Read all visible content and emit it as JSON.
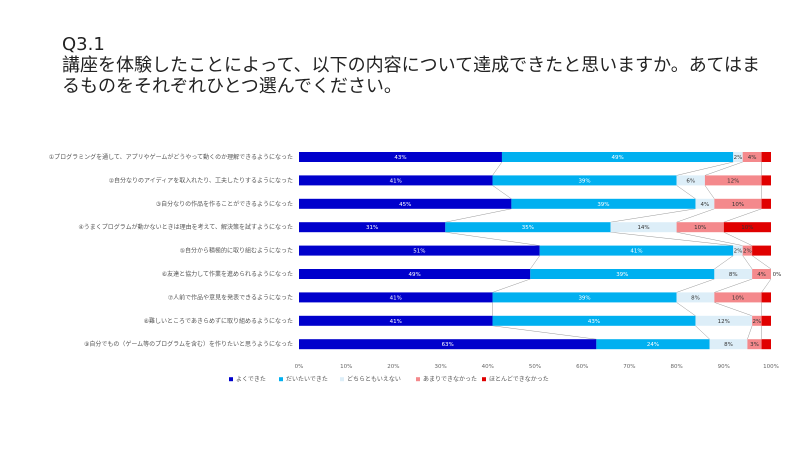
{
  "question": {
    "number": "Q3.1",
    "text": "講座を体験したことによって、以下の内容について達成できたと思いますか。あてはまるものをそれぞれひとつ選んでください。"
  },
  "chart_data": {
    "type": "bar",
    "orientation": "horizontal",
    "stacked": true,
    "percent": true,
    "categories": [
      "①プログラミングを通して、アプリやゲームがどうやって動くのか理解できるようになった",
      "②自分なりのアイディアを取入れたり、工夫したりするようになった",
      "③自分なりの作品を作ることができるようになった",
      "④うまくプログラムが動かないときは理由を考えて、解決策を試すようになった",
      "⑤自分から積極的に取り組むようになった",
      "⑥友達と協力して作業を進められるようになった",
      "⑦人前で作品や意見を発表できるようになった",
      "⑧難しいところであきらめずに取り組めるようになった",
      "⑨自分でもの（ゲーム等のプログラムを含む）を作りたいと思うようになった"
    ],
    "series": [
      {
        "name": "よくできた",
        "color": "#0000CC",
        "label_color": "#ffffff",
        "values": [
          43,
          41,
          45,
          31,
          51,
          49,
          41,
          41,
          63
        ]
      },
      {
        "name": "だいたいできた",
        "color": "#00B0F0",
        "label_color": "#ffffff",
        "values": [
          49,
          39,
          39,
          35,
          41,
          39,
          39,
          43,
          24
        ]
      },
      {
        "name": "どちらともいえない",
        "color": "#DDEEF8",
        "label_color": "#333333",
        "values": [
          2,
          6,
          4,
          14,
          2,
          8,
          8,
          12,
          8
        ]
      },
      {
        "name": "あまりできなかった",
        "color": "#F4898C",
        "label_color": "#333333",
        "values": [
          4,
          12,
          10,
          10,
          2,
          4,
          10,
          2,
          3
        ]
      },
      {
        "name": "ほとんどできなかった",
        "color": "#E00000",
        "label_color": "#333333",
        "values": [
          2,
          2,
          2,
          10,
          4,
          0,
          2,
          2,
          2
        ]
      }
    ],
    "data_labels": [
      [
        "43%",
        "49%",
        "2%",
        "4%",
        ""
      ],
      [
        "41%",
        "39%",
        "6%",
        "12%",
        ""
      ],
      [
        "45%",
        "39%",
        "4%",
        "10%",
        ""
      ],
      [
        "31%",
        "35%",
        "14%",
        "10%",
        "10%"
      ],
      [
        "51%",
        "41%",
        "2%",
        "2%",
        ""
      ],
      [
        "49%",
        "39%",
        "8%",
        "4%",
        "0%"
      ],
      [
        "41%",
        "39%",
        "8%",
        "10%",
        ""
      ],
      [
        "41%",
        "43%",
        "12%",
        "2%",
        ""
      ],
      [
        "63%",
        "24%",
        "8%",
        "3%",
        ""
      ]
    ],
    "x_ticks": [
      "0%",
      "10%",
      "20%",
      "30%",
      "40%",
      "50%",
      "60%",
      "70%",
      "80%",
      "90%",
      "100%"
    ],
    "xlim": [
      0,
      100
    ],
    "grid": false,
    "series_lines": true,
    "legend_position": "bottom-left"
  }
}
